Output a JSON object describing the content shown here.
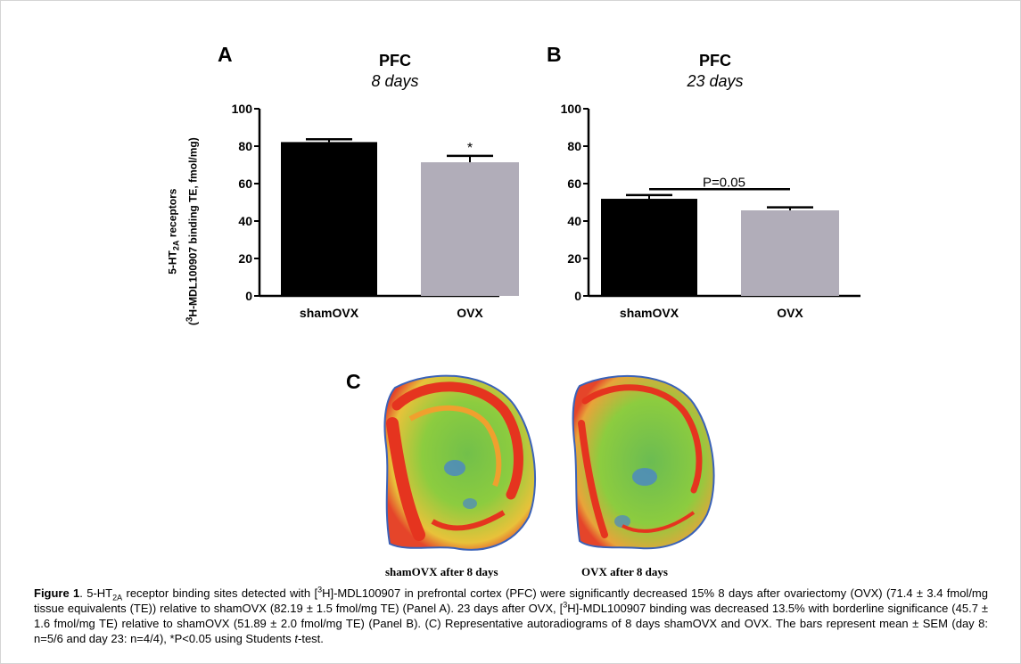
{
  "chart_data": [
    {
      "type": "bar",
      "panel": "A",
      "title": "PFC",
      "subtitle": "8 days",
      "categories": [
        "shamOVX",
        "OVX"
      ],
      "values": [
        82.19,
        71.4
      ],
      "errors": [
        1.5,
        3.4
      ],
      "colors": [
        "#000000",
        "#b1adb9"
      ],
      "ylim": [
        0,
        100
      ],
      "yticks": [
        0,
        20,
        40,
        60,
        80,
        100
      ],
      "annotation": "*"
    },
    {
      "type": "bar",
      "panel": "B",
      "title": "PFC",
      "subtitle": "23 days",
      "categories": [
        "shamOVX",
        "OVX"
      ],
      "values": [
        51.89,
        45.7
      ],
      "errors": [
        2.0,
        1.6
      ],
      "colors": [
        "#000000",
        "#b1adb9"
      ],
      "ylim": [
        0,
        100
      ],
      "yticks": [
        0,
        20,
        40,
        60,
        80,
        100
      ],
      "annotation": "P=0.05"
    }
  ],
  "ylabel": {
    "line1_pre": "5-HT",
    "line1_sub": "2A",
    "line1_post": " receptors",
    "line2_pre": "(",
    "line2_sup": "3",
    "line2_post": "H-MDL100907 binding TE, fmol/mg)"
  },
  "panel_c": {
    "letter": "C",
    "images": [
      {
        "label": "shamOVX after 8 days",
        "icon": "autoradiogram-brain-slice"
      },
      {
        "label": "OVX after 8 days",
        "icon": "autoradiogram-brain-slice"
      }
    ]
  },
  "caption": {
    "lead": "Figure 1",
    "p1": ". 5-HT",
    "s1": "2A",
    "p2": " receptor binding sites detected with [",
    "s2": "3",
    "p3": "H]-MDL100907 in prefrontal cortex (PFC) were significantly decreased 15% 8 days after ovariectomy (OVX) (71.4 ± 3.4 fmol/mg tissue equivalents (TE)) relative to shamOVX (82.19 ± 1.5 fmol/mg TE) (Panel A). 23 days after OVX, [",
    "s3": "3",
    "p4": "H]-MDL100907 binding was decreased 13.5% with borderline significance (45.7 ± 1.6 fmol/mg TE) relative to shamOVX (51.89 ± 2.0 fmol/mg TE) (Panel B). (C) Representative autoradiograms of 8 days shamOVX and OVX. The bars represent mean ± SEM (day 8: n=5/6 and day 23: n=4/4), *P<0.05 using Students ",
    "italic": "t",
    "p5": "-test."
  }
}
